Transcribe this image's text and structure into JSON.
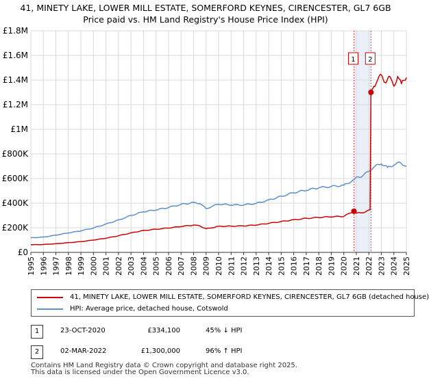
{
  "chart_data": {
    "type": "line",
    "title": "41, MINETY LAKE, LOWER MILL ESTATE, SOMERFORD KEYNES, CIRENCESTER, GL7 6GB",
    "subtitle": "Price paid vs. HM Land Registry's House Price Index (HPI)",
    "xlabel": "",
    "ylabel": "",
    "xlim": [
      1995,
      2025
    ],
    "ylim": [
      0,
      1800000
    ],
    "x_ticks": [
      "1995",
      "1996",
      "1997",
      "1998",
      "1999",
      "2000",
      "2001",
      "2002",
      "2003",
      "2004",
      "2005",
      "2006",
      "2007",
      "2008",
      "2009",
      "2010",
      "2011",
      "2012",
      "2013",
      "2014",
      "2015",
      "2016",
      "2017",
      "2018",
      "2019",
      "2020",
      "2021",
      "2022",
      "2023",
      "2024",
      "2025"
    ],
    "y_ticks": [
      {
        "value": 0,
        "label": "£0"
      },
      {
        "value": 200000,
        "label": "£200K"
      },
      {
        "value": 400000,
        "label": "£400K"
      },
      {
        "value": 600000,
        "label": "£600K"
      },
      {
        "value": 800000,
        "label": "£800K"
      },
      {
        "value": 1000000,
        "label": "£1M"
      },
      {
        "value": 1200000,
        "label": "£1.2M"
      },
      {
        "value": 1400000,
        "label": "£1.4M"
      },
      {
        "value": 1600000,
        "label": "£1.6M"
      },
      {
        "value": 1800000,
        "label": "£1.8M"
      }
    ],
    "grid": true,
    "shaded_range": [
      2020.81,
      2022.17
    ],
    "series": [
      {
        "name": "41, MINETY LAKE, LOWER MILL ESTATE, SOMERFORD KEYNES, CIRENCESTER, GL7 6GB (detached house)",
        "color": "#cc0000",
        "points": [
          [
            1995,
            62000
          ],
          [
            1996,
            64000
          ],
          [
            1997,
            70000
          ],
          [
            1998,
            79000
          ],
          [
            1999,
            87000
          ],
          [
            2000,
            100000
          ],
          [
            2001,
            115000
          ],
          [
            2002,
            135000
          ],
          [
            2003,
            158000
          ],
          [
            2004,
            178000
          ],
          [
            2005,
            188000
          ],
          [
            2006,
            198000
          ],
          [
            2007,
            210000
          ],
          [
            2008,
            222000
          ],
          [
            2008.5,
            215000
          ],
          [
            2009,
            192000
          ],
          [
            2009.5,
            200000
          ],
          [
            2010,
            212000
          ],
          [
            2011,
            213000
          ],
          [
            2012,
            215000
          ],
          [
            2013,
            222000
          ],
          [
            2014,
            236000
          ],
          [
            2015,
            250000
          ],
          [
            2016,
            265000
          ],
          [
            2017,
            276000
          ],
          [
            2018,
            284000
          ],
          [
            2019,
            289000
          ],
          [
            2020,
            293000
          ],
          [
            2020.81,
            334100
          ],
          [
            2021,
            318000
          ],
          [
            2021.5,
            322000
          ],
          [
            2022.1,
            345000
          ],
          [
            2022.17,
            1300000
          ],
          [
            2022.4,
            1350000
          ],
          [
            2022.7,
            1400000
          ],
          [
            2023,
            1440000
          ],
          [
            2023.3,
            1380000
          ],
          [
            2023.6,
            1430000
          ],
          [
            2024,
            1350000
          ],
          [
            2024.3,
            1430000
          ],
          [
            2024.6,
            1370000
          ],
          [
            2025,
            1420000
          ]
        ]
      },
      {
        "name": "HPI: Average price, detached house, Cotswold",
        "color": "#5b8fc9",
        "points": [
          [
            1995,
            118000
          ],
          [
            1996,
            124000
          ],
          [
            1997,
            140000
          ],
          [
            1998,
            158000
          ],
          [
            1999,
            175000
          ],
          [
            2000,
            198000
          ],
          [
            2001,
            230000
          ],
          [
            2002,
            262000
          ],
          [
            2003,
            300000
          ],
          [
            2004,
            330000
          ],
          [
            2005,
            345000
          ],
          [
            2006,
            365000
          ],
          [
            2007,
            390000
          ],
          [
            2008,
            405000
          ],
          [
            2008.5,
            398000
          ],
          [
            2009,
            355000
          ],
          [
            2009.5,
            375000
          ],
          [
            2010,
            392000
          ],
          [
            2011,
            385000
          ],
          [
            2012,
            385000
          ],
          [
            2013,
            398000
          ],
          [
            2014,
            425000
          ],
          [
            2015,
            455000
          ],
          [
            2016,
            485000
          ],
          [
            2017,
            505000
          ],
          [
            2018,
            525000
          ],
          [
            2019,
            535000
          ],
          [
            2020,
            545000
          ],
          [
            2020.81,
            590000
          ],
          [
            2021,
            612000
          ],
          [
            2021.5,
            620000
          ],
          [
            2022,
            660000
          ],
          [
            2022.5,
            700000
          ],
          [
            2023,
            720000
          ],
          [
            2023.5,
            690000
          ],
          [
            2024,
            710000
          ],
          [
            2024.5,
            730000
          ],
          [
            2025,
            700000
          ]
        ]
      }
    ],
    "markers": [
      {
        "label": "1",
        "x": 2020.81,
        "y": 334100
      },
      {
        "label": "2",
        "x": 2022.17,
        "y": 1300000
      }
    ]
  },
  "legend": {
    "property_label": "41, MINETY LAKE, LOWER MILL ESTATE, SOMERFORD KEYNES, CIRENCESTER, GL7 6GB (detached house)",
    "hpi_label": "HPI: Average price, detached house, Cotswold"
  },
  "transactions": [
    {
      "num": "1",
      "date": "23-OCT-2020",
      "price": "£334,100",
      "hpi": "45% ↓ HPI"
    },
    {
      "num": "2",
      "date": "02-MAR-2022",
      "price": "£1,300,000",
      "hpi": "96% ↑ HPI"
    }
  ],
  "footer": {
    "line1": "Contains HM Land Registry data © Crown copyright and database right 2025.",
    "line2": "This data is licensed under the Open Government Licence v3.0."
  },
  "colors": {
    "property": "#cc0000",
    "hpi": "#5b8fc9",
    "shade": "#dde6f3"
  }
}
